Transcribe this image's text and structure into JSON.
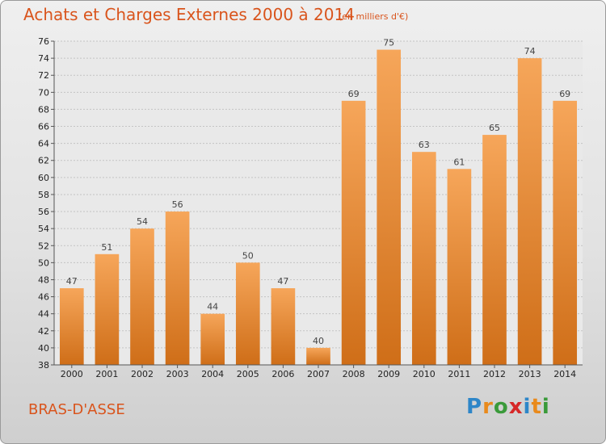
{
  "header": {
    "title": "Achats et Charges Externes 2000 à 2014",
    "subtitle": "(en milliers d'€)"
  },
  "footer": {
    "commune": "BRAS-D'ASSE",
    "brand": [
      "P",
      "r",
      "o",
      "x",
      "i",
      "t",
      "i"
    ],
    "brand_colors": [
      "#2e86c8",
      "#e98a1c",
      "#3a9a3a",
      "#d62828",
      "#2e86c8",
      "#e98a1c",
      "#3a9a3a"
    ]
  },
  "colors": {
    "bar_top": "#f6a65a",
    "bar_bottom": "#cf6e18",
    "accent": "#d9541c"
  },
  "chart_data": {
    "type": "bar",
    "categories": [
      "2000",
      "2001",
      "2002",
      "2003",
      "2004",
      "2005",
      "2006",
      "2007",
      "2008",
      "2009",
      "2010",
      "2011",
      "2012",
      "2013",
      "2014"
    ],
    "values": [
      47,
      51,
      54,
      56,
      44,
      50,
      47,
      40,
      69,
      75,
      63,
      61,
      65,
      74,
      69
    ],
    "title": "Achats et Charges Externes 2000 à 2014",
    "ylim": [
      38,
      76
    ],
    "yticks": [
      38,
      40,
      42,
      44,
      46,
      48,
      50,
      52,
      54,
      56,
      58,
      60,
      62,
      64,
      66,
      68,
      70,
      72,
      74,
      76
    ],
    "grid": true
  }
}
